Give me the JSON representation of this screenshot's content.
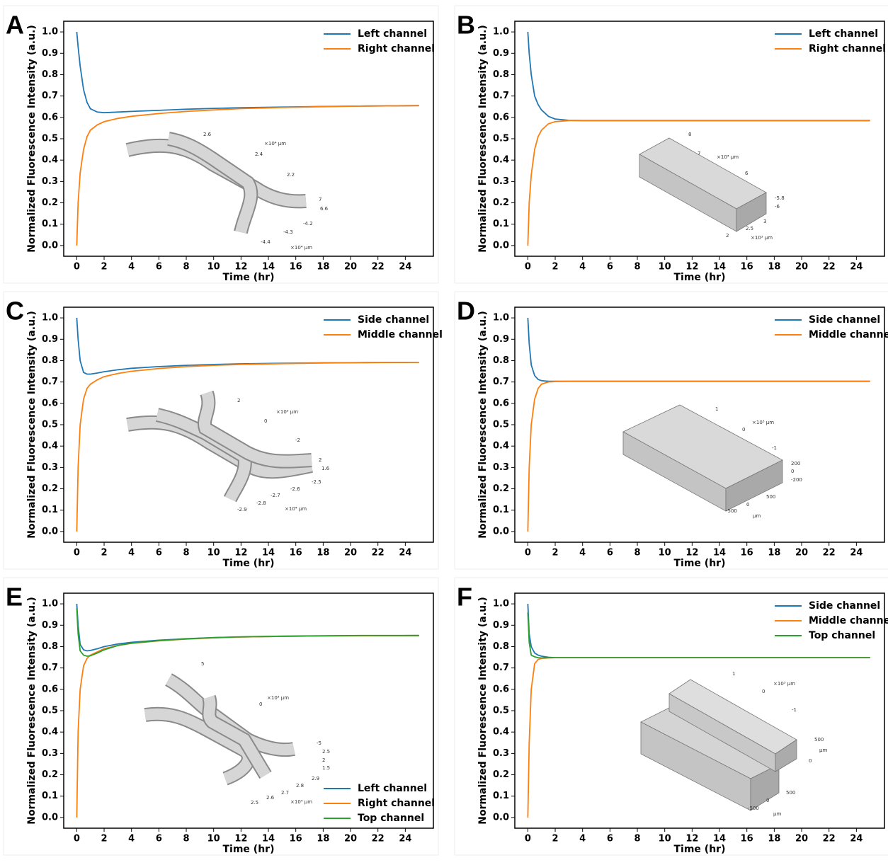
{
  "chart_data": [
    {
      "panel": "A",
      "type": "line",
      "xlabel": "Time (hr)",
      "ylabel": "Normalized Fluorescence Intensity (a.u.)",
      "legend": "upper right",
      "x": [
        0,
        0.1,
        0.25,
        0.5,
        0.75,
        1,
        1.5,
        2,
        3,
        4,
        6,
        8,
        10,
        12,
        15,
        18,
        21,
        25
      ],
      "series": [
        {
          "name": "Left channel",
          "color": "#1f77b4",
          "values": [
            1.0,
            0.93,
            0.84,
            0.73,
            0.67,
            0.64,
            0.625,
            0.622,
            0.625,
            0.628,
            0.633,
            0.638,
            0.642,
            0.645,
            0.648,
            0.651,
            0.653,
            0.655
          ]
        },
        {
          "name": "Right channel",
          "color": "#ff7f0e",
          "values": [
            0.0,
            0.2,
            0.34,
            0.45,
            0.51,
            0.54,
            0.565,
            0.58,
            0.595,
            0.605,
            0.618,
            0.628,
            0.635,
            0.641,
            0.646,
            0.65,
            0.653,
            0.655
          ]
        }
      ],
      "xlim": [
        -0.95,
        26.05
      ],
      "ylim": [
        -0.05,
        1.05
      ],
      "xticks": [
        0,
        2,
        4,
        6,
        8,
        10,
        12,
        14,
        16,
        18,
        20,
        22,
        24
      ],
      "yticks": [
        {
          "value": 0,
          "label": "0.0"
        },
        0.1,
        0.2,
        0.3,
        0.4,
        0.5,
        0.6,
        0.7,
        0.8,
        0.9,
        {
          "value": 1,
          "label": "1.0"
        }
      ],
      "inset_labels": [
        "2.6",
        "×10⁴ μm",
        "2.4",
        "2.2",
        "7",
        "6.6",
        "-4.2",
        "-4.3",
        "-4.4",
        "×10⁴ μm"
      ]
    },
    {
      "panel": "B",
      "type": "line",
      "xlabel": "Time (hr)",
      "ylabel": "Normalized Fluorescence Intensity (a.u.)",
      "legend": "upper right",
      "x": [
        0,
        0.1,
        0.25,
        0.5,
        0.75,
        1,
        1.5,
        2,
        3,
        4,
        6,
        8,
        10,
        12,
        15,
        18,
        21,
        25
      ],
      "series": [
        {
          "name": "Left channel",
          "color": "#1f77b4",
          "values": [
            1.0,
            0.9,
            0.8,
            0.7,
            0.66,
            0.635,
            0.605,
            0.592,
            0.586,
            0.585,
            0.585,
            0.585,
            0.585,
            0.585,
            0.585,
            0.585,
            0.585,
            0.585
          ]
        },
        {
          "name": "Right channel",
          "color": "#ff7f0e",
          "values": [
            0.0,
            0.2,
            0.33,
            0.45,
            0.51,
            0.54,
            0.57,
            0.58,
            0.585,
            0.585,
            0.585,
            0.585,
            0.585,
            0.585,
            0.585,
            0.585,
            0.585,
            0.585
          ]
        }
      ],
      "xlim": [
        -0.95,
        26.05
      ],
      "ylim": [
        -0.05,
        1.05
      ],
      "xticks": [
        0,
        2,
        4,
        6,
        8,
        10,
        12,
        14,
        16,
        18,
        20,
        22,
        24
      ],
      "yticks": [
        {
          "value": 0,
          "label": "0.0"
        },
        0.1,
        0.2,
        0.3,
        0.4,
        0.5,
        0.6,
        0.7,
        0.8,
        0.9,
        {
          "value": 1,
          "label": "1.0"
        }
      ],
      "inset_labels": [
        "8",
        "7",
        "×10³ μm",
        "6",
        "-5.8",
        "-6",
        "3",
        "2.5",
        "2",
        "×10³ μm"
      ]
    },
    {
      "panel": "C",
      "type": "line",
      "xlabel": "Time (hr)",
      "ylabel": "Normalized Fluorescence Intensity (a.u.)",
      "legend": "upper right",
      "x": [
        0,
        0.1,
        0.25,
        0.5,
        0.75,
        1,
        1.5,
        2,
        3,
        4,
        6,
        8,
        10,
        12,
        15,
        18,
        21,
        25
      ],
      "series": [
        {
          "name": "Side channel",
          "color": "#1f77b4",
          "values": [
            1.0,
            0.9,
            0.8,
            0.745,
            0.737,
            0.737,
            0.742,
            0.748,
            0.757,
            0.764,
            0.772,
            0.778,
            0.782,
            0.785,
            0.788,
            0.79,
            0.791,
            0.792
          ]
        },
        {
          "name": "Middle channel",
          "color": "#ff7f0e",
          "values": [
            0.0,
            0.3,
            0.5,
            0.62,
            0.67,
            0.69,
            0.71,
            0.725,
            0.74,
            0.75,
            0.763,
            0.772,
            0.778,
            0.782,
            0.786,
            0.789,
            0.791,
            0.792
          ]
        }
      ],
      "xlim": [
        -0.95,
        26.05
      ],
      "ylim": [
        -0.05,
        1.05
      ],
      "xticks": [
        0,
        2,
        4,
        6,
        8,
        10,
        12,
        14,
        16,
        18,
        20,
        22,
        24
      ],
      "yticks": [
        {
          "value": 0,
          "label": "0.0"
        },
        0.1,
        0.2,
        0.3,
        0.4,
        0.5,
        0.6,
        0.7,
        0.8,
        0.9,
        {
          "value": 1,
          "label": "1.0"
        }
      ],
      "inset_labels": [
        "2",
        "×10³ μm",
        "0",
        "-2",
        "2",
        "1.6",
        "-2.5",
        "-2.6",
        "-2.7",
        "-2.8",
        "-2.9",
        "×10⁴ μm"
      ]
    },
    {
      "panel": "D",
      "type": "line",
      "xlabel": "Time (hr)",
      "ylabel": "Normalized Fluorescence Intensity (a.u.)",
      "legend": "upper right",
      "x": [
        0,
        0.1,
        0.25,
        0.5,
        0.75,
        1,
        1.5,
        2,
        3,
        4,
        6,
        8,
        10,
        12,
        15,
        18,
        21,
        25
      ],
      "series": [
        {
          "name": "Side channel",
          "color": "#1f77b4",
          "values": [
            1.0,
            0.88,
            0.78,
            0.73,
            0.712,
            0.706,
            0.703,
            0.703,
            0.703,
            0.703,
            0.703,
            0.703,
            0.703,
            0.703,
            0.703,
            0.703,
            0.703,
            0.703
          ]
        },
        {
          "name": "Middle channel",
          "color": "#ff7f0e",
          "values": [
            0.0,
            0.3,
            0.5,
            0.62,
            0.67,
            0.69,
            0.7,
            0.702,
            0.703,
            0.703,
            0.703,
            0.703,
            0.703,
            0.703,
            0.703,
            0.703,
            0.703,
            0.703
          ]
        }
      ],
      "xlim": [
        -0.95,
        26.05
      ],
      "ylim": [
        -0.05,
        1.05
      ],
      "xticks": [
        0,
        2,
        4,
        6,
        8,
        10,
        12,
        14,
        16,
        18,
        20,
        22,
        24
      ],
      "yticks": [
        {
          "value": 0,
          "label": "0.0"
        },
        0.1,
        0.2,
        0.3,
        0.4,
        0.5,
        0.6,
        0.7,
        0.8,
        0.9,
        {
          "value": 1,
          "label": "1.0"
        }
      ],
      "inset_labels": [
        "1",
        "×10³ μm",
        "0",
        "-1",
        "200",
        "0",
        "-200",
        "500",
        "0",
        "-500",
        "μm"
      ]
    },
    {
      "panel": "E",
      "type": "line",
      "xlabel": "Time (hr)",
      "ylabel": "Normalized Fluorescence Intensity (a.u.)",
      "legend": "lower right",
      "x": [
        0,
        0.1,
        0.25,
        0.5,
        0.75,
        1,
        1.5,
        2,
        3,
        4,
        6,
        8,
        10,
        12,
        15,
        18,
        21,
        25
      ],
      "series": [
        {
          "name": "Left channel",
          "color": "#1f77b4",
          "values": [
            1.0,
            0.9,
            0.81,
            0.785,
            0.78,
            0.782,
            0.79,
            0.8,
            0.812,
            0.82,
            0.83,
            0.837,
            0.842,
            0.845,
            0.848,
            0.85,
            0.851,
            0.852
          ]
        },
        {
          "name": "Right channel",
          "color": "#ff7f0e",
          "values": [
            0.0,
            0.4,
            0.6,
            0.71,
            0.745,
            0.76,
            0.775,
            0.79,
            0.805,
            0.815,
            0.827,
            0.835,
            0.841,
            0.845,
            0.848,
            0.85,
            0.851,
            0.852
          ]
        },
        {
          "name": "Top channel",
          "color": "#2ca02c",
          "values": [
            0.98,
            0.86,
            0.78,
            0.76,
            0.755,
            0.757,
            0.77,
            0.785,
            0.805,
            0.816,
            0.828,
            0.836,
            0.842,
            0.846,
            0.849,
            0.851,
            0.852,
            0.852
          ]
        }
      ],
      "xlim": [
        -0.95,
        26.05
      ],
      "ylim": [
        -0.05,
        1.05
      ],
      "xticks": [
        0,
        2,
        4,
        6,
        8,
        10,
        12,
        14,
        16,
        18,
        20,
        22,
        24
      ],
      "yticks": [
        {
          "value": 0,
          "label": "0.0"
        },
        0.1,
        0.2,
        0.3,
        0.4,
        0.5,
        0.6,
        0.7,
        0.8,
        0.9,
        {
          "value": 1,
          "label": "1.0"
        }
      ],
      "inset_labels": [
        "5",
        "×10³ μm",
        "0",
        "-5",
        "2.5",
        "2",
        "1.5",
        "2.9",
        "2.8",
        "2.7",
        "2.6",
        "2.5",
        "×10⁴ μm"
      ]
    },
    {
      "panel": "F",
      "type": "line",
      "xlabel": "Time (hr)",
      "ylabel": "Normalized Fluorescence Intensity (a.u.)",
      "legend": "upper right",
      "x": [
        0,
        0.1,
        0.25,
        0.5,
        0.75,
        1,
        1.5,
        2,
        3,
        4,
        6,
        8,
        10,
        12,
        15,
        18,
        21,
        25
      ],
      "series": [
        {
          "name": "Side channel",
          "color": "#1f77b4",
          "values": [
            1.0,
            0.86,
            0.8,
            0.77,
            0.76,
            0.755,
            0.75,
            0.748,
            0.748,
            0.748,
            0.748,
            0.748,
            0.748,
            0.748,
            0.748,
            0.748,
            0.748,
            0.748
          ]
        },
        {
          "name": "Middle channel",
          "color": "#ff7f0e",
          "values": [
            0.0,
            0.35,
            0.6,
            0.72,
            0.74,
            0.745,
            0.747,
            0.748,
            0.748,
            0.748,
            0.748,
            0.748,
            0.748,
            0.748,
            0.748,
            0.748,
            0.748,
            0.748
          ]
        },
        {
          "name": "Top channel",
          "color": "#2ca02c",
          "values": [
            0.96,
            0.82,
            0.76,
            0.752,
            0.748,
            0.747,
            0.748,
            0.748,
            0.748,
            0.748,
            0.748,
            0.748,
            0.748,
            0.748,
            0.748,
            0.748,
            0.748,
            0.748
          ]
        }
      ],
      "xlim": [
        -0.95,
        26.05
      ],
      "ylim": [
        -0.05,
        1.05
      ],
      "xticks": [
        0,
        2,
        4,
        6,
        8,
        10,
        12,
        14,
        16,
        18,
        20,
        22,
        24
      ],
      "yticks": [
        {
          "value": 0,
          "label": "0.0"
        },
        0.1,
        0.2,
        0.3,
        0.4,
        0.5,
        0.6,
        0.7,
        0.8,
        0.9,
        {
          "value": 1,
          "label": "1.0"
        }
      ],
      "inset_labels": [
        "1",
        "×10³ μm",
        "0",
        "-1",
        "500",
        "μm",
        "0",
        "500",
        "0",
        "-500",
        "μm"
      ]
    }
  ]
}
